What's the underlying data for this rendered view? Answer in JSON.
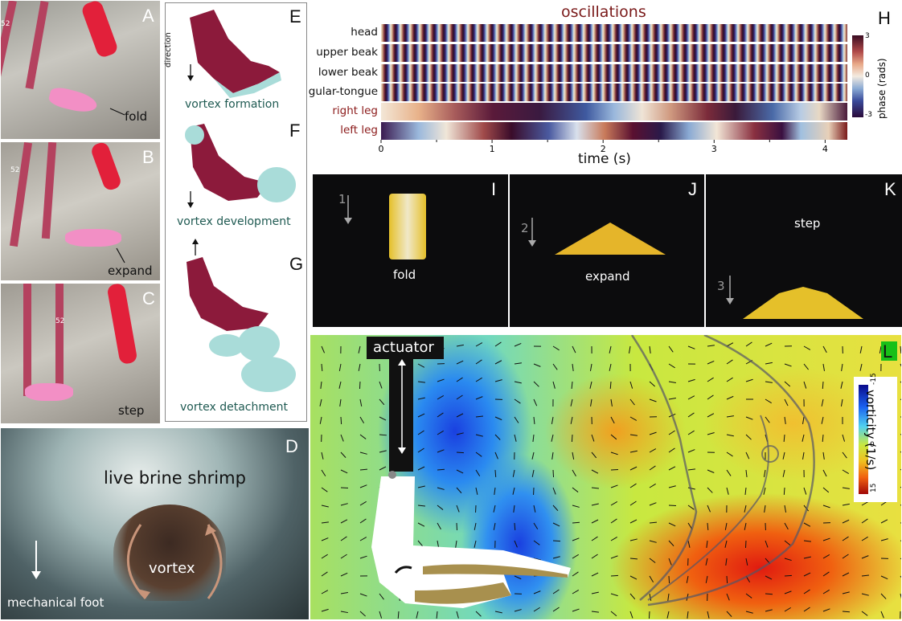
{
  "panels": {
    "A": "A",
    "B": "B",
    "C": "C",
    "D": "D",
    "E": "E",
    "F": "F",
    "G": "G",
    "H": "H",
    "I": "I",
    "J": "J",
    "K": "K",
    "L": "L"
  },
  "photos_abc": {
    "fold": "fold",
    "expand": "expand",
    "step": "step",
    "tag_a": "52",
    "tag_b": "52",
    "tag_c": "52"
  },
  "panel_d": {
    "title": "live brine shrimp",
    "vortex": "vortex",
    "foot": "mechanical foot"
  },
  "vortex_renders": {
    "direction": "direction",
    "formation": "vortex formation",
    "development": "vortex development",
    "detachment": "vortex detachment"
  },
  "chart_data": {
    "type": "heatmap",
    "title": "oscillations",
    "xlabel": "time (s)",
    "xlim": [
      0,
      4.2
    ],
    "x_ticks": [
      "0",
      "1",
      "2",
      "3",
      "4"
    ],
    "rows": [
      "head",
      "upper beak",
      "lower beak",
      "gular-tongue",
      "right leg",
      "left leg"
    ],
    "colorbar": {
      "label": "phase (rads)",
      "ticks": [
        "3",
        "0",
        "-3"
      ],
      "range": [
        -3,
        3
      ]
    }
  },
  "robot": {
    "fold": "fold",
    "expand": "expand",
    "step": "step",
    "n1": "1",
    "n2": "2",
    "n3": "3"
  },
  "panel_l": {
    "actuator": "actuator",
    "colorbar_label": "vorticity (1/s)",
    "colorbar_ticks": [
      "-15",
      "0",
      "15"
    ]
  }
}
